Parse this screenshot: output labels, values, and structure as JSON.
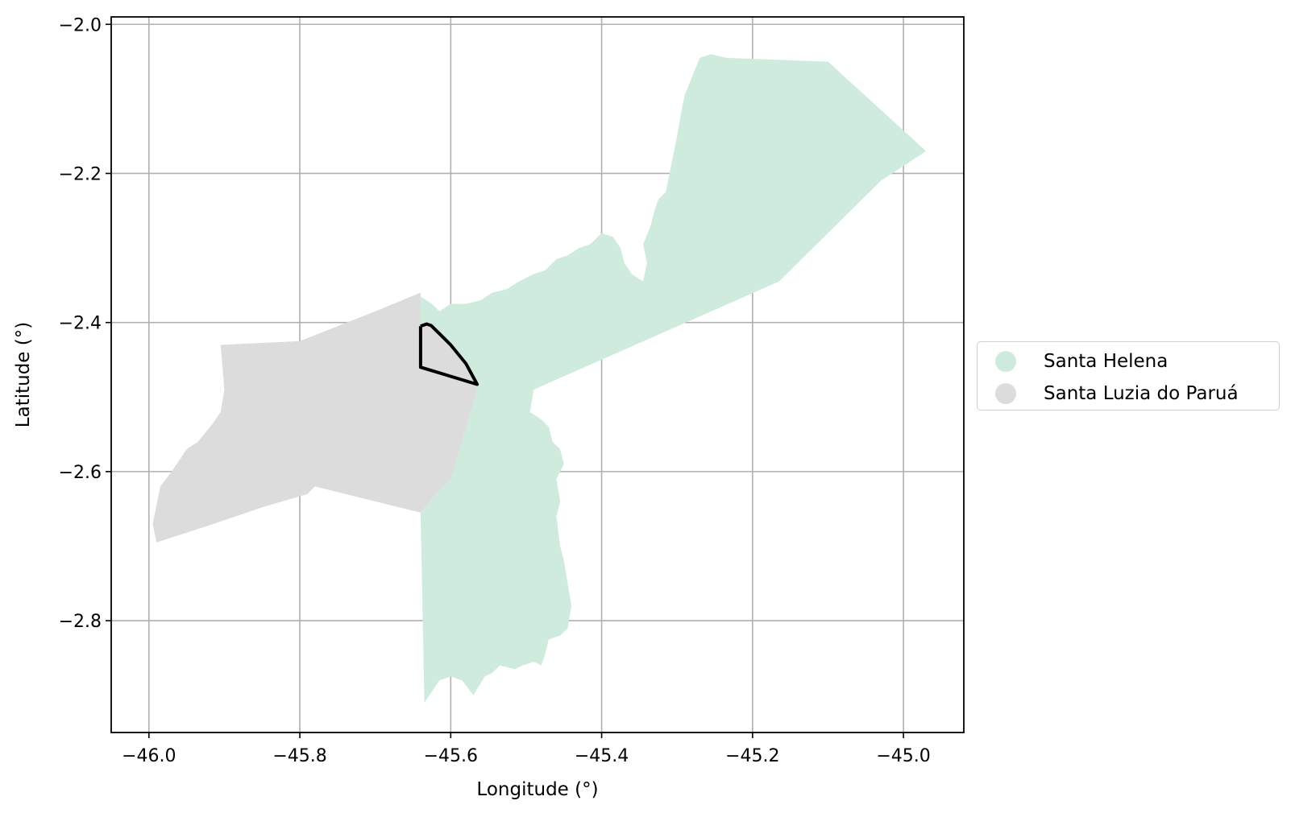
{
  "chart_data": {
    "type": "map",
    "xlabel": "Longitude (°)",
    "ylabel": "Latitude (°)",
    "xlim": [
      -46.05,
      -44.92
    ],
    "ylim": [
      -2.95,
      -1.99
    ],
    "x_ticks": [
      -46.0,
      -45.8,
      -45.6,
      -45.4,
      -45.2,
      -45.0
    ],
    "x_tick_labels": [
      "−46.0",
      "−45.8",
      "−45.6",
      "−45.4",
      "−45.2",
      "−45.0"
    ],
    "y_ticks": [
      -2.0,
      -2.2,
      -2.4,
      -2.6,
      -2.8
    ],
    "y_tick_labels": [
      "−2.0",
      "−2.2",
      "−2.4",
      "−2.6",
      "−2.8"
    ],
    "grid": true,
    "legend_position": "outside-right",
    "regions": [
      {
        "name": "Santa Helena",
        "color": "#cfebde",
        "coords": [
          [
            -45.64,
            -2.365
          ],
          [
            -45.625,
            -2.375
          ],
          [
            -45.615,
            -2.385
          ],
          [
            -45.6,
            -2.375
          ],
          [
            -45.58,
            -2.375
          ],
          [
            -45.56,
            -2.37
          ],
          [
            -45.545,
            -2.36
          ],
          [
            -45.525,
            -2.355
          ],
          [
            -45.51,
            -2.345
          ],
          [
            -45.49,
            -2.335
          ],
          [
            -45.475,
            -2.33
          ],
          [
            -45.46,
            -2.315
          ],
          [
            -45.445,
            -2.31
          ],
          [
            -45.43,
            -2.3
          ],
          [
            -45.415,
            -2.295
          ],
          [
            -45.4,
            -2.28
          ],
          [
            -45.385,
            -2.285
          ],
          [
            -45.375,
            -2.3
          ],
          [
            -45.37,
            -2.32
          ],
          [
            -45.36,
            -2.335
          ],
          [
            -45.345,
            -2.345
          ],
          [
            -45.34,
            -2.32
          ],
          [
            -45.345,
            -2.295
          ],
          [
            -45.335,
            -2.27
          ],
          [
            -45.33,
            -2.25
          ],
          [
            -45.325,
            -2.235
          ],
          [
            -45.315,
            -2.225
          ],
          [
            -45.31,
            -2.2
          ],
          [
            -45.305,
            -2.175
          ],
          [
            -45.3,
            -2.15
          ],
          [
            -45.295,
            -2.12
          ],
          [
            -45.29,
            -2.095
          ],
          [
            -45.28,
            -2.07
          ],
          [
            -45.27,
            -2.045
          ],
          [
            -45.255,
            -2.04
          ],
          [
            -45.235,
            -2.045
          ],
          [
            -45.1,
            -2.05
          ],
          [
            -44.97,
            -2.17
          ],
          [
            -45.03,
            -2.21
          ],
          [
            -45.165,
            -2.345
          ],
          [
            -45.49,
            -2.49
          ],
          [
            -45.495,
            -2.52
          ],
          [
            -45.48,
            -2.53
          ],
          [
            -45.47,
            -2.54
          ],
          [
            -45.465,
            -2.56
          ],
          [
            -45.455,
            -2.57
          ],
          [
            -45.45,
            -2.59
          ],
          [
            -45.46,
            -2.61
          ],
          [
            -45.455,
            -2.64
          ],
          [
            -45.46,
            -2.66
          ],
          [
            -45.455,
            -2.7
          ],
          [
            -45.45,
            -2.72
          ],
          [
            -45.445,
            -2.75
          ],
          [
            -45.44,
            -2.78
          ],
          [
            -45.445,
            -2.81
          ],
          [
            -45.455,
            -2.82
          ],
          [
            -45.47,
            -2.825
          ],
          [
            -45.475,
            -2.845
          ],
          [
            -45.48,
            -2.86
          ],
          [
            -45.49,
            -2.855
          ],
          [
            -45.505,
            -2.86
          ],
          [
            -45.515,
            -2.865
          ],
          [
            -45.535,
            -2.86
          ],
          [
            -45.545,
            -2.87
          ],
          [
            -45.555,
            -2.875
          ],
          [
            -45.57,
            -2.9
          ],
          [
            -45.585,
            -2.88
          ],
          [
            -45.6,
            -2.875
          ],
          [
            -45.615,
            -2.88
          ],
          [
            -45.635,
            -2.91
          ],
          [
            -45.64,
            -2.655
          ],
          [
            -45.62,
            -2.63
          ],
          [
            -45.6,
            -2.61
          ],
          [
            -45.585,
            -2.56
          ],
          [
            -45.565,
            -2.49
          ],
          [
            -45.58,
            -2.46
          ],
          [
            -45.6,
            -2.43
          ],
          [
            -45.625,
            -2.405
          ],
          [
            -45.64,
            -2.4
          ]
        ]
      },
      {
        "name": "Santa Luzia do Paruá",
        "color": "#dcdcdc",
        "coords": [
          [
            -45.64,
            -2.36
          ],
          [
            -45.64,
            -2.4
          ],
          [
            -45.625,
            -2.405
          ],
          [
            -45.6,
            -2.43
          ],
          [
            -45.58,
            -2.46
          ],
          [
            -45.565,
            -2.49
          ],
          [
            -45.585,
            -2.56
          ],
          [
            -45.6,
            -2.61
          ],
          [
            -45.62,
            -2.63
          ],
          [
            -45.64,
            -2.655
          ],
          [
            -45.78,
            -2.62
          ],
          [
            -45.79,
            -2.63
          ],
          [
            -45.85,
            -2.648
          ],
          [
            -45.92,
            -2.672
          ],
          [
            -45.99,
            -2.695
          ],
          [
            -45.995,
            -2.67
          ],
          [
            -45.985,
            -2.62
          ],
          [
            -45.97,
            -2.6
          ],
          [
            -45.96,
            -2.585
          ],
          [
            -45.95,
            -2.57
          ],
          [
            -45.935,
            -2.56
          ],
          [
            -45.915,
            -2.535
          ],
          [
            -45.905,
            -2.52
          ],
          [
            -45.9,
            -2.49
          ],
          [
            -45.905,
            -2.43
          ],
          [
            -45.8,
            -2.425
          ],
          [
            -45.75,
            -2.405
          ],
          [
            -45.7,
            -2.385
          ]
        ]
      }
    ],
    "outline": {
      "color": "#000000",
      "coords": [
        [
          -45.64,
          -2.405
        ],
        [
          -45.632,
          -2.402
        ],
        [
          -45.626,
          -2.404
        ],
        [
          -45.62,
          -2.41
        ],
        [
          -45.61,
          -2.42
        ],
        [
          -45.6,
          -2.43
        ],
        [
          -45.58,
          -2.455
        ],
        [
          -45.565,
          -2.483
        ],
        [
          -45.64,
          -2.46
        ],
        [
          -45.64,
          -2.405
        ]
      ]
    }
  }
}
